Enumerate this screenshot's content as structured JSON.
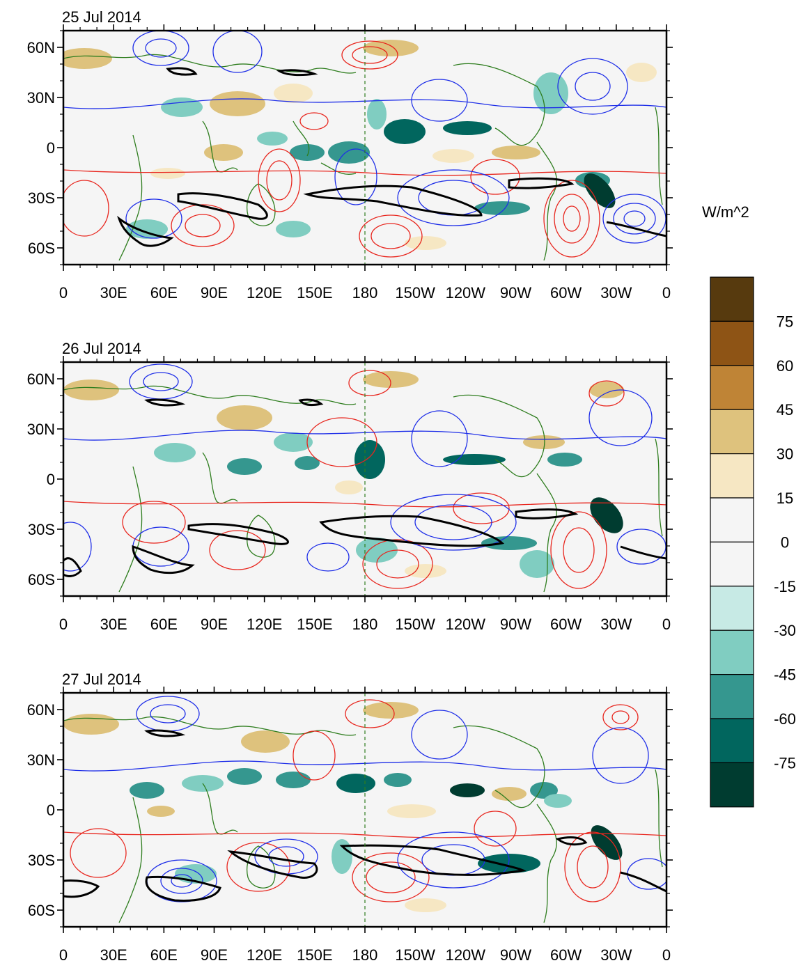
{
  "panels": [
    {
      "date": "25 Jul 2014"
    },
    {
      "date": "26 Jul 2014"
    },
    {
      "date": "27 Jul 2014"
    }
  ],
  "axes": {
    "lat_labels": [
      "60N",
      "30N",
      "0",
      "30S",
      "60S"
    ],
    "lat_values": [
      60,
      30,
      0,
      -30,
      -60
    ],
    "lon_labels": [
      "0",
      "30E",
      "60E",
      "90E",
      "120E",
      "150E",
      "180",
      "150W",
      "120W",
      "90W",
      "60W",
      "30W",
      "0"
    ],
    "lon_values": [
      0,
      30,
      60,
      90,
      120,
      150,
      180,
      210,
      240,
      270,
      300,
      330,
      360
    ],
    "lat_range": [
      -70,
      70
    ],
    "lon_range": [
      0,
      360
    ],
    "reference_line": {
      "lon": 180,
      "style": "dashed"
    }
  },
  "colorbar": {
    "title": "W/m^2",
    "tick_labels": [
      "75",
      "60",
      "45",
      "30",
      "15",
      "0",
      "-15",
      "-30",
      "-45",
      "-60",
      "-75"
    ],
    "colors": [
      "#573A0E",
      "#8E5415",
      "#BF8436",
      "#DEC27D",
      "#F6E7C3",
      "#F5F5F5",
      "#F5F5F5",
      "#C7EAE5",
      "#80CDC1",
      "#35978F",
      "#01665E",
      "#003C30"
    ]
  },
  "colors": {
    "coastline": "#2E7D1E",
    "positive_contour": "#E8261E",
    "negative_contour": "#1E2EE8",
    "jet_contour": "#000000"
  }
}
